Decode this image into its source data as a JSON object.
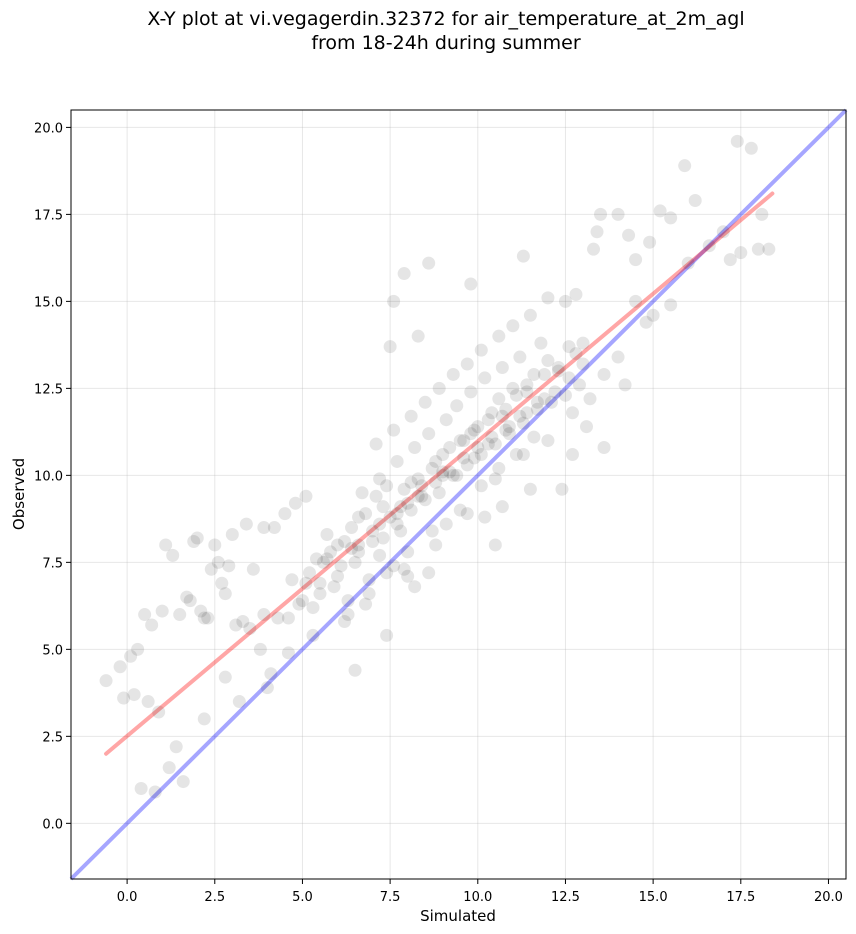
{
  "chart_data": {
    "type": "scatter",
    "title": "X-Y plot at vi.vegagerdin.32372 for air_temperature_at_2m_agl",
    "subtitle": "from 18-24h during summer",
    "xlabel": "Simulated",
    "ylabel": "Observed",
    "xlim": [
      -1.6,
      20.5
    ],
    "ylim": [
      -1.6,
      20.5
    ],
    "xticks": [
      0.0,
      2.5,
      5.0,
      7.5,
      10.0,
      12.5,
      15.0,
      17.5,
      20.0
    ],
    "yticks": [
      0.0,
      2.5,
      5.0,
      7.5,
      10.0,
      12.5,
      15.0,
      17.5,
      20.0
    ],
    "xtick_labels": [
      "0.0",
      "2.5",
      "5.0",
      "7.5",
      "10.0",
      "12.5",
      "15.0",
      "17.5",
      "20.0"
    ],
    "ytick_labels": [
      "0.0",
      "2.5",
      "5.0",
      "7.5",
      "10.0",
      "12.5",
      "15.0",
      "17.5",
      "20.0"
    ],
    "grid": true,
    "point_color": "#000000",
    "point_opacity": 0.1,
    "regression_line": {
      "color": "#ff0000",
      "opacity": 0.35,
      "x": [
        -0.6,
        18.4
      ],
      "y": [
        2.0,
        18.1
      ]
    },
    "identity_line": {
      "color": "#0000ff",
      "opacity": 0.35,
      "x": [
        -1.6,
        20.5
      ],
      "y": [
        -1.6,
        20.5
      ]
    },
    "points": {
      "x": [
        -0.6,
        -0.1,
        0.2,
        0.3,
        0.6,
        0.9,
        0.1,
        -0.2,
        0.4,
        0.8,
        1.2,
        1.4,
        1.6,
        0.5,
        0.7,
        1.0,
        1.5,
        1.8,
        2.2,
        2.4,
        2.7,
        2.9,
        3.1,
        2.5,
        2.0,
        1.9,
        1.1,
        1.3,
        1.7,
        2.1,
        2.3,
        2.6,
        2.8,
        3.3,
        3.6,
        3.9,
        4.2,
        3.4,
        3.0,
        2.2,
        4.5,
        4.8,
        5.1,
        3.8,
        4.1,
        4.6,
        3.2,
        2.8,
        6.0,
        7.5,
        7.6,
        7.9,
        8.3,
        8.6,
        9.8,
        11.3,
        13.3,
        13.4,
        13.5,
        14.0,
        14.3,
        14.5,
        14.9,
        15.2,
        15.5,
        15.9,
        16.2,
        16.6,
        17.0,
        17.2,
        17.4,
        17.8,
        18.0,
        18.3,
        18.1,
        17.5,
        16.0,
        15.5,
        15.0,
        14.5,
        13.0,
        14.0,
        12.8,
        12.5,
        12.0,
        13.6,
        14.2,
        14.8,
        4.0,
        5.3,
        6.3,
        6.5,
        7.4,
        8.2,
        9.4,
        10.5,
        10.7,
        11.5,
        12.4,
        12.7,
        13.1,
        13.6,
        5.3,
        6.2,
        6.9,
        7.6,
        8.0,
        8.6,
        9.1,
        10.2,
        4.7,
        5.2,
        5.6,
        5.9,
        6.6,
        7.0,
        7.2,
        7.8,
        4.6,
        5.0,
        5.5,
        6.0,
        6.5,
        7.3,
        7.7,
        8.1,
        8.5,
        8.9,
        9.3,
        9.7,
        10.1,
        10.5,
        10.9,
        11.3,
        11.7,
        12.1,
        12.5,
        12.9,
        5.8,
        6.4,
        6.8,
        7.1,
        7.4,
        7.9,
        8.3,
        8.8,
        9.2,
        9.5,
        9.9,
        10.3,
        10.8,
        11.1,
        11.4,
        11.9,
        12.3,
        12.8,
        6.1,
        6.6,
        7.0,
        7.5,
        8.0,
        8.4,
        8.7,
        9.0,
        9.6,
        10.0,
        10.4,
        10.6,
        11.0,
        11.6,
        12.0,
        12.6,
        6.7,
        7.2,
        7.7,
        8.2,
        8.6,
        9.1,
        9.4,
        9.8,
        10.2,
        10.7,
        11.2,
        11.8,
        7.1,
        7.6,
        8.1,
        8.5,
        8.9,
        9.3,
        9.7,
        10.1,
        10.6,
        11.0,
        11.5,
        7.8,
        8.3,
        8.8,
        9.2,
        9.6,
        10.0,
        10.4,
        10.9,
        11.4,
        11.9,
        5.1,
        5.4,
        5.7,
        6.2,
        6.6,
        7.3,
        7.7,
        8.4,
        9.0,
        9.9,
        10.3,
        10.8,
        11.2,
        11.7,
        12.2,
        12.6,
        13.0,
        6.3,
        6.9,
        7.4,
        8.0,
        8.7,
        9.5,
        10.1,
        10.6,
        11.1,
        11.6,
        4.9,
        5.5,
        6.8,
        7.9,
        8.8,
        9.7,
        10.5,
        11.3,
        12.0,
        12.7,
        13.2,
        3.5,
        3.9,
        4.3,
        5.7,
        6.4,
        7.2,
        8.1,
        9.0,
        9.8,
        10.7,
        11.4,
        12.3
      ],
      "y": [
        4.1,
        3.6,
        3.7,
        5.0,
        3.5,
        3.2,
        4.8,
        4.5,
        1.0,
        0.9,
        1.6,
        2.2,
        1.2,
        6.0,
        5.7,
        6.1,
        6.0,
        6.4,
        5.9,
        7.3,
        6.9,
        7.4,
        5.7,
        8.0,
        8.2,
        8.1,
        8.0,
        7.7,
        6.5,
        6.1,
        5.9,
        7.5,
        6.6,
        5.8,
        7.3,
        8.5,
        8.5,
        8.6,
        8.3,
        3.0,
        8.9,
        9.2,
        9.4,
        5.0,
        4.3,
        4.9,
        3.5,
        4.2,
        8.0,
        13.7,
        15.0,
        15.8,
        14.0,
        16.1,
        15.5,
        16.3,
        16.5,
        17.0,
        17.5,
        17.5,
        16.9,
        16.2,
        16.7,
        17.6,
        17.4,
        18.9,
        17.9,
        16.6,
        17.0,
        16.2,
        19.6,
        19.4,
        16.5,
        16.5,
        17.5,
        16.4,
        16.1,
        14.9,
        14.6,
        15.0,
        13.8,
        13.4,
        15.2,
        15.0,
        15.1,
        12.9,
        12.6,
        14.4,
        3.9,
        5.4,
        6.4,
        4.4,
        5.4,
        6.8,
        10.0,
        8.0,
        9.1,
        9.6,
        9.6,
        10.6,
        11.4,
        10.8,
        6.2,
        5.8,
        7.0,
        7.4,
        7.1,
        7.2,
        8.6,
        8.8,
        7.0,
        7.2,
        7.5,
        6.8,
        7.8,
        8.1,
        7.7,
        8.4,
        5.9,
        6.4,
        6.9,
        7.1,
        7.5,
        8.2,
        8.6,
        9.0,
        9.3,
        9.5,
        10.0,
        10.3,
        10.6,
        10.9,
        11.2,
        11.5,
        11.9,
        12.1,
        12.3,
        12.6,
        7.8,
        8.5,
        8.9,
        9.4,
        9.7,
        9.6,
        9.9,
        10.4,
        10.8,
        11.0,
        11.3,
        11.6,
        11.9,
        12.3,
        12.6,
        12.9,
        13.1,
        13.5,
        7.4,
        8.0,
        8.4,
        8.8,
        9.2,
        9.7,
        10.2,
        10.6,
        11.0,
        11.4,
        11.8,
        12.2,
        12.5,
        12.9,
        13.3,
        13.7,
        9.5,
        9.9,
        10.4,
        10.8,
        11.2,
        11.6,
        12.0,
        12.4,
        12.8,
        13.1,
        13.4,
        13.8,
        10.9,
        11.3,
        11.7,
        12.1,
        12.5,
        12.9,
        13.2,
        13.6,
        14.0,
        14.3,
        14.6,
        9.1,
        9.4,
        9.8,
        10.1,
        10.5,
        10.8,
        11.1,
        11.4,
        11.8,
        12.2,
        6.9,
        7.6,
        8.3,
        8.1,
        8.8,
        9.1,
        8.9,
        9.4,
        10.0,
        10.5,
        10.9,
        11.3,
        11.7,
        12.1,
        12.4,
        12.8,
        13.2,
        6.0,
        6.6,
        7.2,
        7.8,
        8.4,
        9.0,
        9.7,
        10.2,
        10.6,
        11.1,
        6.3,
        6.6,
        6.3,
        7.3,
        8.0,
        8.9,
        9.9,
        10.6,
        11.0,
        11.8,
        12.2,
        5.6,
        6.0,
        5.9,
        7.6,
        7.9,
        8.6,
        9.8,
        10.1,
        11.2,
        11.7,
        12.4,
        13.0
      ]
    }
  }
}
